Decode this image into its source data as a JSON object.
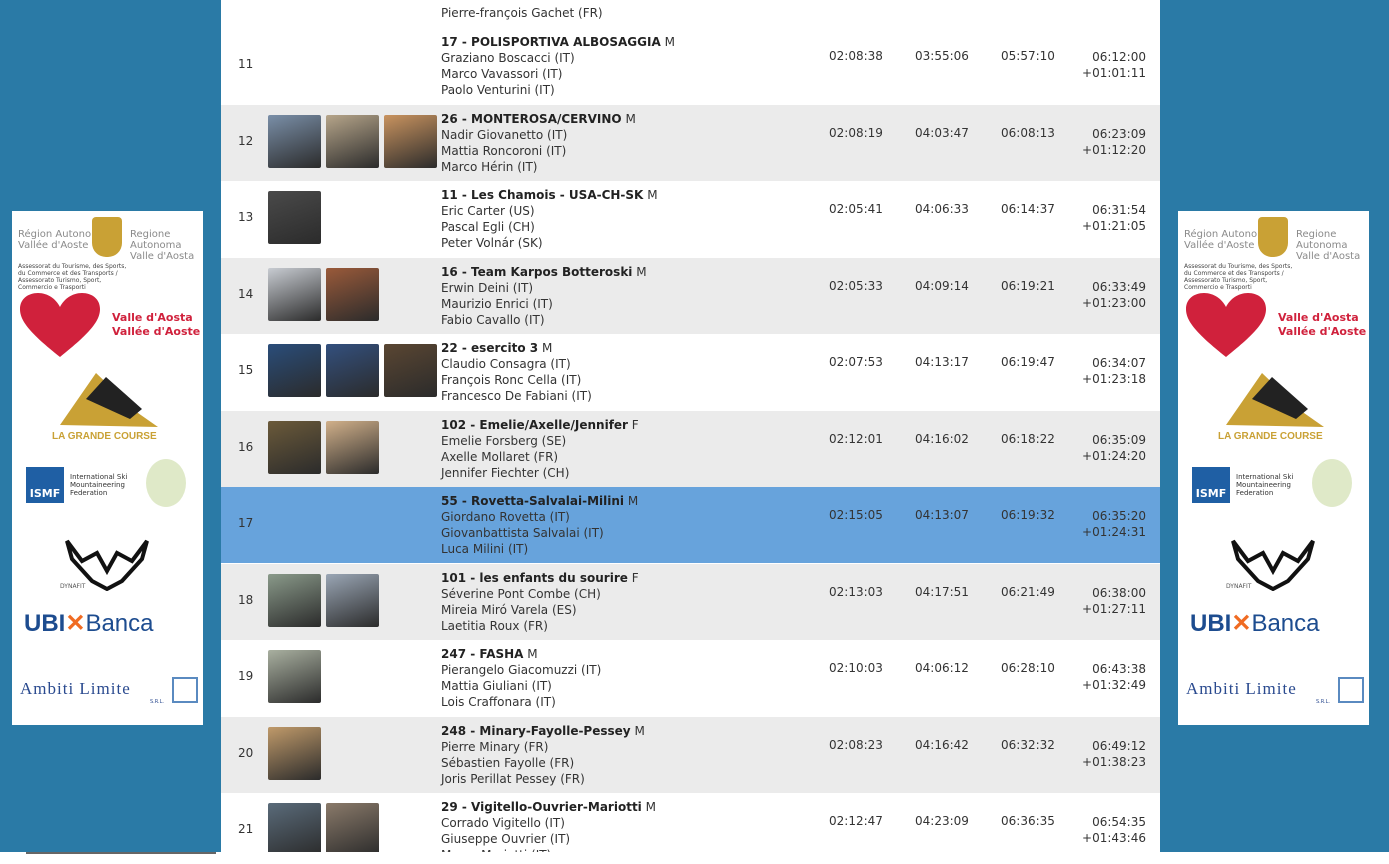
{
  "top_partial": "Pierre-françois Gachet (FR)",
  "rows": [
    {
      "rank": "11",
      "team": "17 - POLISPORTIVA ALBOSAGGIA",
      "cat": "M",
      "members": [
        "Graziano Boscacci (IT)",
        "Marco Vavassori (IT)",
        "Paolo Venturini (IT)"
      ],
      "t1": "02:08:38",
      "t2": "03:55:06",
      "t3": "05:57:10",
      "total": "06:12:00",
      "gap": "+01:01:11",
      "photos": []
    },
    {
      "rank": "12",
      "team": "26 - MONTEROSA/CERVINO",
      "cat": "M",
      "members": [
        "Nadir Giovanetto (IT)",
        "Mattia Roncoroni (IT)",
        "Marco Hérin (IT)"
      ],
      "t1": "02:08:19",
      "t2": "04:03:47",
      "t3": "06:08:13",
      "total": "06:23:09",
      "gap": "+01:12:20",
      "photos": [
        "#7a8fa8",
        "#b6a58a",
        "#c9935f"
      ]
    },
    {
      "rank": "13",
      "team": "11 - Les Chamois - USA-CH-SK",
      "cat": "M",
      "members": [
        "Eric Carter (US)",
        "Pascal Egli (CH)",
        "Peter Volnár (SK)"
      ],
      "t1": "02:05:41",
      "t2": "04:06:33",
      "t3": "06:14:37",
      "total": "06:31:54",
      "gap": "+01:21:05",
      "photos": [
        "#4a4a4a"
      ]
    },
    {
      "rank": "14",
      "team": "16 - Team Karpos Botteroski",
      "cat": "M",
      "members": [
        "Erwin Deini (IT)",
        "Maurizio Enrici (IT)",
        "Fabio Cavallo (IT)"
      ],
      "t1": "02:05:33",
      "t2": "04:09:14",
      "t3": "06:19:21",
      "total": "06:33:49",
      "gap": "+01:23:00",
      "photos": [
        "#c8ccd2",
        "#9a5a3a"
      ]
    },
    {
      "rank": "15",
      "team": "22 - esercito 3",
      "cat": "M",
      "members": [
        "Claudio Consagra (IT)",
        "François Ronc Cella (IT)",
        "Francesco De Fabiani (IT)"
      ],
      "t1": "02:07:53",
      "t2": "04:13:17",
      "t3": "06:19:47",
      "total": "06:34:07",
      "gap": "+01:23:18",
      "photos": [
        "#2a4d7a",
        "#33507e",
        "#5a4632"
      ]
    },
    {
      "rank": "16",
      "team": "102 - Emelie/Axelle/Jennifer",
      "cat": "F",
      "members": [
        "Emelie Forsberg (SE)",
        "Axelle Mollaret (FR)",
        "Jennifer Fiechter (CH)"
      ],
      "t1": "02:12:01",
      "t2": "04:16:02",
      "t3": "06:18:22",
      "total": "06:35:09",
      "gap": "+01:24:20",
      "photos": [
        "#6b5a3a",
        "#d1b08a"
      ]
    },
    {
      "rank": "17",
      "team": "55 - Rovetta-Salvalai-Milini",
      "cat": "M",
      "members": [
        "Giordano Rovetta (IT)",
        "Giovanbattista Salvalai (IT)",
        "Luca Milini (IT)"
      ],
      "t1": "02:15:05",
      "t2": "04:13:07",
      "t3": "06:19:32",
      "total": "06:35:20",
      "gap": "+01:24:31",
      "photos": []
    },
    {
      "rank": "18",
      "team": "101 - les enfants du sourire",
      "cat": "F",
      "members": [
        "Séverine Pont Combe (CH)",
        "Mireia Miró Varela (ES)",
        "Laetitia Roux (FR)"
      ],
      "t1": "02:13:03",
      "t2": "04:17:51",
      "t3": "06:21:49",
      "total": "06:38:00",
      "gap": "+01:27:11",
      "photos": [
        "#8a9a8a",
        "#9aa6b5"
      ]
    },
    {
      "rank": "19",
      "team": "247 - FASHA",
      "cat": "M",
      "members": [
        "Pierangelo Giacomuzzi (IT)",
        "Mattia Giuliani (IT)",
        "Lois Craffonara (IT)"
      ],
      "t1": "02:10:03",
      "t2": "04:06:12",
      "t3": "06:28:10",
      "total": "06:43:38",
      "gap": "+01:32:49",
      "photos": [
        "#a9b0a0"
      ]
    },
    {
      "rank": "20",
      "team": "248 - Minary-Fayolle-Pessey",
      "cat": "M",
      "members": [
        "Pierre Minary (FR)",
        "Sébastien Fayolle (FR)",
        "Joris Perillat Pessey (FR)"
      ],
      "t1": "02:08:23",
      "t2": "04:16:42",
      "t3": "06:32:32",
      "total": "06:49:12",
      "gap": "+01:38:23",
      "photos": [
        "#c09a6a"
      ]
    },
    {
      "rank": "21",
      "team": "29 - Vigitello-Ouvrier-Mariotti",
      "cat": "M",
      "members": [
        "Corrado Vigitello (IT)",
        "Giuseppe Ouvrier (IT)",
        "Marco Mariotti (IT)"
      ],
      "t1": "02:12:47",
      "t2": "04:23:09",
      "t3": "06:36:35",
      "total": "06:54:35",
      "gap": "+01:43:46",
      "photos": [
        "#5a6b7a",
        "#8a7a6a"
      ]
    }
  ],
  "sponsors": {
    "region_left": "Région Autonome Vallée d'Aoste",
    "region_right": "Regione Autonoma Valle d'Aosta",
    "assessorato": "Assessorat du Tourisme, des Sports, du Commerce et des Transports / Assessorato Turismo, Sport, Commercio e Trasporti",
    "vda_1": "Valle d'Aosta",
    "vda_2": "Vallée d'Aoste",
    "lgc": "LA GRANDE COURSE",
    "ismf": "ISMF",
    "ismf_text": "International Ski Mountaineering Federation",
    "dynafit": "DYNAFIT",
    "ubi": "UBI",
    "banca": "Banca",
    "ambiti": "Ambiti Limite",
    "ambiti_sub": "S.R.L."
  }
}
